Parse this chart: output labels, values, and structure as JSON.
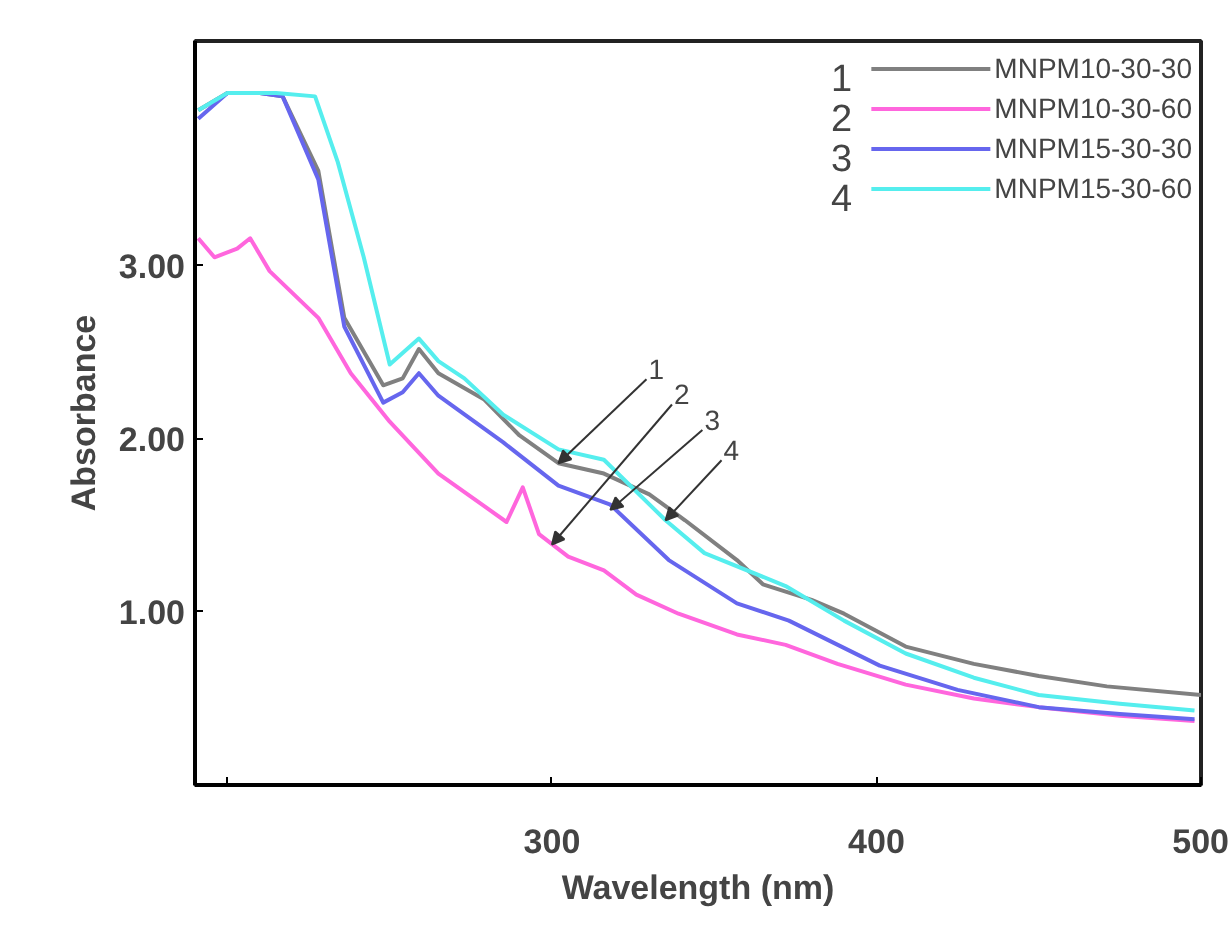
{
  "chart_data": {
    "type": "line",
    "xlabel": "Wavelength (nm)",
    "ylabel": "Absorbance",
    "xlim": [
      190,
      500
    ],
    "ylim": [
      0,
      4.3
    ],
    "xticks": [
      {
        "value": 200,
        "label": null
      },
      300,
      400,
      500
    ],
    "yticks": [
      {
        "value": 1,
        "label": "1.00"
      },
      {
        "value": 2,
        "label": "2.00"
      },
      {
        "value": 3,
        "label": "3.00"
      }
    ],
    "grid": false,
    "legend": "top right",
    "marker": "none",
    "line_style": "solid",
    "series": [
      {
        "name": "MNPM10-30-30",
        "color": "#808080",
        "x": [
          191,
          200,
          210,
          217,
          228,
          236,
          248,
          254,
          259,
          265,
          279,
          290,
          302,
          316,
          330,
          341,
          357,
          365,
          380,
          390,
          409,
          430,
          450,
          471,
          500
        ],
        "values": [
          3.9,
          4.0,
          4.0,
          3.98,
          3.55,
          2.7,
          2.31,
          2.35,
          2.52,
          2.38,
          2.23,
          2.02,
          1.86,
          1.8,
          1.68,
          1.53,
          1.3,
          1.16,
          1.07,
          0.99,
          0.8,
          0.7,
          0.63,
          0.57,
          0.52
        ]
      },
      {
        "name": "MNPM10-30-60",
        "color": "#ff66dd",
        "x": [
          191,
          196,
          203,
          207,
          213,
          228,
          238,
          250,
          265,
          280,
          286,
          291,
          296,
          305,
          316,
          326,
          339,
          357,
          372,
          388,
          409,
          430,
          450,
          475,
          498
        ],
        "values": [
          3.16,
          3.05,
          3.1,
          3.16,
          2.97,
          2.7,
          2.38,
          2.1,
          1.8,
          1.6,
          1.52,
          1.72,
          1.45,
          1.32,
          1.24,
          1.1,
          0.99,
          0.87,
          0.81,
          0.7,
          0.58,
          0.5,
          0.45,
          0.4,
          0.37
        ]
      },
      {
        "name": "MNPM15-30-30",
        "color": "#6666ee",
        "x": [
          191,
          200,
          210,
          217,
          228,
          236,
          248,
          254,
          259,
          265,
          285,
          302,
          318,
          336,
          357,
          373,
          401,
          425,
          450,
          475,
          498
        ],
        "values": [
          3.85,
          4.0,
          4.0,
          3.98,
          3.5,
          2.65,
          2.21,
          2.27,
          2.38,
          2.25,
          1.98,
          1.73,
          1.62,
          1.3,
          1.05,
          0.95,
          0.69,
          0.55,
          0.45,
          0.41,
          0.38
        ]
      },
      {
        "name": "MNPM15-30-60",
        "color": "#55eeee",
        "x": [
          191,
          200,
          215,
          227,
          234,
          242,
          250,
          259,
          265,
          273,
          285,
          302,
          316,
          335,
          347,
          372,
          390,
          409,
          430,
          450,
          475,
          498
        ],
        "values": [
          3.9,
          4.0,
          4.0,
          3.98,
          3.6,
          3.05,
          2.43,
          2.58,
          2.45,
          2.35,
          2.14,
          1.94,
          1.88,
          1.53,
          1.34,
          1.15,
          0.95,
          0.76,
          0.62,
          0.52,
          0.47,
          0.43
        ]
      }
    ],
    "annotations": [
      "1",
      "2",
      "3",
      "4",
      {
        "text": "1",
        "x": 302,
        "y": 1.86
      },
      {
        "text": "2",
        "x": 300,
        "y": 1.39
      },
      {
        "text": "3",
        "x": 318,
        "y": 1.59
      },
      {
        "text": "4",
        "x": 335,
        "y": 1.53
      }
    ]
  }
}
